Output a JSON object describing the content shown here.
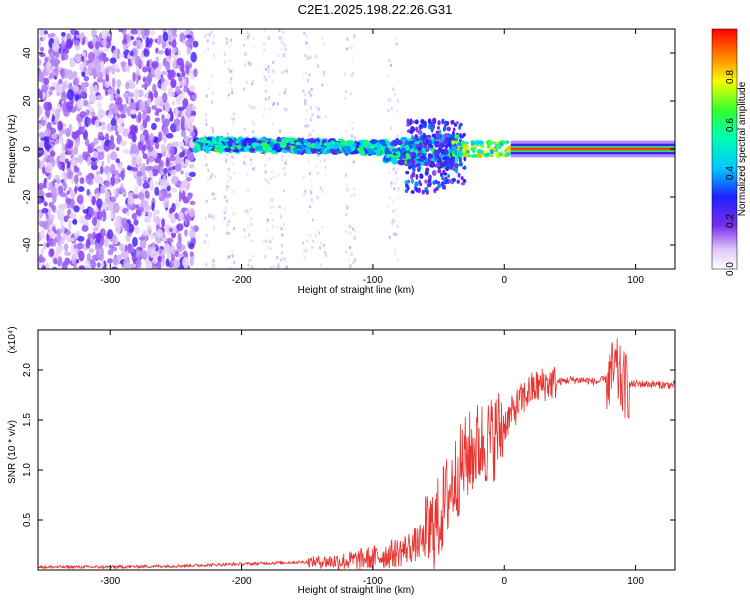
{
  "title": "C2E1.2025.198.22.26.G31",
  "chart_data": [
    {
      "type": "heatmap",
      "xlabel": "Height of straight line (km)",
      "ylabel": "Frequency (Hz)",
      "xlim": [
        -355,
        130
      ],
      "ylim": [
        -50,
        50
      ],
      "xticks": [
        -300,
        -200,
        -100,
        0,
        100
      ],
      "yticks": [
        -40,
        -20,
        0,
        20,
        40
      ],
      "colorbar": {
        "label": "Normalized spectral amplitude",
        "range": [
          0,
          1
        ],
        "ticks": [
          0.0,
          0.2,
          0.4,
          0.6,
          0.8
        ],
        "colormap": "rainbow (white-purple-blue-cyan-green-yellow-red)"
      },
      "features": [
        {
          "description": "diffuse noise",
          "x": [
            -355,
            -235
          ],
          "y": [
            -50,
            50
          ],
          "amplitude": 0.1
        },
        {
          "description": "narrow band near 0 Hz",
          "x": [
            -235,
            -40
          ],
          "y": [
            -5,
            8
          ],
          "amplitude": 0.35
        },
        {
          "description": "spreading band",
          "x": [
            -80,
            -30
          ],
          "y": [
            -18,
            12
          ],
          "amplitude": 0.3
        },
        {
          "description": "strong carrier line",
          "x": [
            5,
            130
          ],
          "y": [
            -1,
            1
          ],
          "amplitude": 0.95
        }
      ]
    },
    {
      "type": "line",
      "xlabel": "Height of straight line (km)",
      "ylabel": "SNR (10 * v/v)",
      "yscale_label": "(x10⁴)",
      "xlim": [
        -355,
        130
      ],
      "ylim": [
        0,
        2.4
      ],
      "xticks": [
        -300,
        -200,
        -100,
        0,
        100
      ],
      "yticks": [
        0.5,
        1.0,
        1.5,
        2.0
      ],
      "ytick_labels": [
        "0.5",
        "1.0",
        "1.5",
        "2.0"
      ],
      "color": "#e8332e",
      "series": [
        {
          "x": [
            -355,
            -300,
            -250,
            -200,
            -150,
            -120,
            -100,
            -80,
            -60,
            -50,
            -40,
            -30,
            -20,
            -10,
            0,
            10,
            20,
            30,
            40,
            50,
            60,
            70,
            80,
            85,
            90,
            95,
            100,
            110,
            120,
            130
          ],
          "values": [
            0.03,
            0.03,
            0.04,
            0.06,
            0.08,
            0.09,
            0.12,
            0.18,
            0.3,
            0.5,
            0.85,
            1.1,
            1.25,
            1.3,
            1.45,
            1.65,
            1.8,
            1.86,
            1.88,
            1.9,
            1.9,
            1.88,
            1.92,
            2.0,
            1.85,
            1.85,
            1.86,
            1.86,
            1.85,
            1.85
          ]
        }
      ]
    }
  ]
}
